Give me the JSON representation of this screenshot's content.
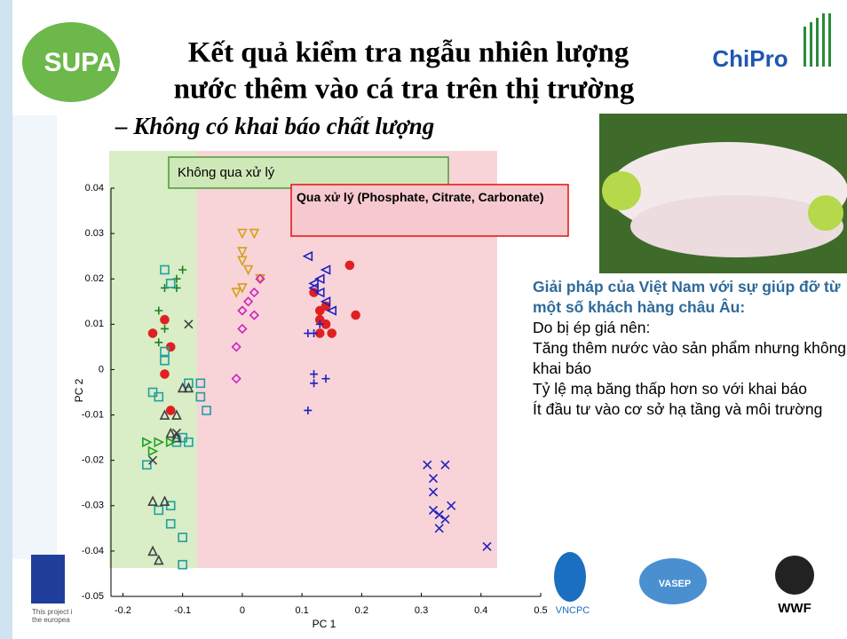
{
  "slide": {
    "logo_left": "SUPA",
    "logo_right": "ChiPro",
    "title_lines": [
      "Kết quả kiểm tra ngẫu nhiên lượng",
      "nước thêm vào cá tra trên thị trường"
    ],
    "subtitle": "– Không có khai báo chất lượng",
    "eu_lines": [
      "This project i",
      "the europea"
    ],
    "bottom_logos": [
      "VNCPC",
      "VASEP",
      "WWF"
    ]
  },
  "panel": {
    "heading": "Giải pháp của Việt Nam  với sự giúp đỡ từ một số khách hàng châu Âu:",
    "lines": [
      "Do bị ép giá nên:",
      "Tăng thêm nước vào sản phẩm nhưng không khai báo",
      "Tỷ lệ mạ băng thấp hơn so với khai báo",
      "Ít đầu tư vào cơ sở hạ tầng và môi trường"
    ]
  },
  "chart_data": {
    "type": "scatter",
    "xlabel": "PC 1",
    "ylabel": "PC 2",
    "annotations": [
      "Không qua xử lý",
      "Qua xử lý (Phosphate, Citrate, Carbonate)"
    ],
    "xlim": [
      -0.22,
      0.5
    ],
    "ylim": [
      -0.05,
      0.04
    ],
    "xticks": [
      -0.2,
      -0.1,
      0,
      0.1,
      0.2,
      0.3,
      0.4,
      0.5
    ],
    "yticks": [
      -0.05,
      -0.04,
      -0.03,
      -0.02,
      -0.01,
      0,
      0.01,
      0.02,
      0.03,
      0.04
    ],
    "grid": false,
    "series": [
      {
        "color": "#e02020",
        "marker": "circle",
        "x": [
          0.12,
          0.13,
          0.14,
          0.13,
          0.14,
          0.15,
          0.13,
          0.19,
          0.18,
          0.14
        ],
        "values": [
          0.017,
          0.013,
          0.014,
          0.011,
          0.01,
          0.008,
          0.008,
          0.012,
          0.023,
          0.01
        ]
      },
      {
        "color": "#e02020",
        "marker": "circle",
        "x": [
          -0.13,
          -0.12,
          -0.12,
          -0.15,
          -0.13
        ],
        "values": [
          0.011,
          0.005,
          -0.009,
          0.008,
          -0.001
        ]
      },
      {
        "color": "#d4a017",
        "marker": "tri-down",
        "x": [
          0.0,
          0.02,
          0.0,
          0.0,
          0.01,
          -0.01,
          0.0,
          0.03
        ],
        "values": [
          0.03,
          0.03,
          0.026,
          0.024,
          0.022,
          0.017,
          0.018,
          0.02
        ]
      },
      {
        "color": "#d020c0",
        "marker": "diamond",
        "x": [
          0.03,
          0.02,
          0.01,
          0.0,
          0.02,
          0.0,
          -0.01,
          -0.01
        ],
        "values": [
          0.02,
          0.017,
          0.015,
          0.013,
          0.012,
          0.009,
          0.005,
          -0.002
        ]
      },
      {
        "color": "#2020c0",
        "marker": "tri-left",
        "x": [
          0.11,
          0.13,
          0.12,
          0.13,
          0.14,
          0.15,
          0.14,
          0.12
        ],
        "values": [
          0.025,
          0.02,
          0.018,
          0.017,
          0.015,
          0.013,
          0.022,
          0.019
        ]
      },
      {
        "color": "#2020c0",
        "marker": "plus",
        "x": [
          0.11,
          0.13,
          0.12,
          0.12,
          0.12,
          0.14,
          0.11
        ],
        "values": [
          0.008,
          0.01,
          0.008,
          -0.001,
          -0.003,
          -0.002,
          -0.009
        ]
      },
      {
        "color": "#2020c0",
        "marker": "cross",
        "x": [
          0.31,
          0.32,
          0.32,
          0.34,
          0.32,
          0.33,
          0.35,
          0.34,
          0.33,
          0.41
        ],
        "values": [
          -0.021,
          -0.024,
          -0.027,
          -0.021,
          -0.031,
          -0.032,
          -0.03,
          -0.033,
          -0.035,
          -0.039
        ]
      },
      {
        "color": "#208020",
        "marker": "plus",
        "x": [
          -0.1,
          -0.11,
          -0.11,
          -0.13,
          -0.14,
          -0.13,
          -0.14
        ],
        "values": [
          0.022,
          0.02,
          0.018,
          0.018,
          0.013,
          0.009,
          0.006
        ]
      },
      {
        "color": "#20a0a0",
        "marker": "square",
        "x": [
          -0.13,
          -0.12,
          -0.13,
          -0.13,
          -0.15,
          -0.14,
          -0.1,
          -0.09,
          -0.07,
          -0.06,
          -0.11,
          -0.16,
          -0.14,
          -0.12,
          -0.12,
          -0.1,
          -0.1,
          -0.09,
          -0.07
        ],
        "values": [
          0.022,
          0.019,
          0.004,
          0.002,
          -0.005,
          -0.006,
          -0.015,
          -0.016,
          -0.006,
          -0.009,
          -0.016,
          -0.021,
          -0.031,
          -0.03,
          -0.034,
          -0.043,
          -0.037,
          -0.003,
          -0.003
        ]
      },
      {
        "color": "#404040",
        "marker": "tri-up",
        "x": [
          -0.1,
          -0.09,
          -0.11,
          -0.13,
          -0.15,
          -0.13,
          -0.15,
          -0.14,
          -0.11,
          -0.12
        ],
        "values": [
          -0.004,
          -0.004,
          -0.01,
          -0.01,
          -0.029,
          -0.029,
          -0.04,
          -0.042,
          -0.015,
          -0.014
        ]
      },
      {
        "color": "#20a020",
        "marker": "tri-right",
        "x": [
          -0.16,
          -0.14,
          -0.12,
          -0.15
        ],
        "values": [
          -0.016,
          -0.016,
          -0.016,
          -0.018
        ]
      },
      {
        "color": "#404040",
        "marker": "cross",
        "x": [
          -0.09,
          -0.15,
          -0.11
        ],
        "values": [
          0.01,
          -0.02,
          -0.014
        ]
      }
    ]
  }
}
